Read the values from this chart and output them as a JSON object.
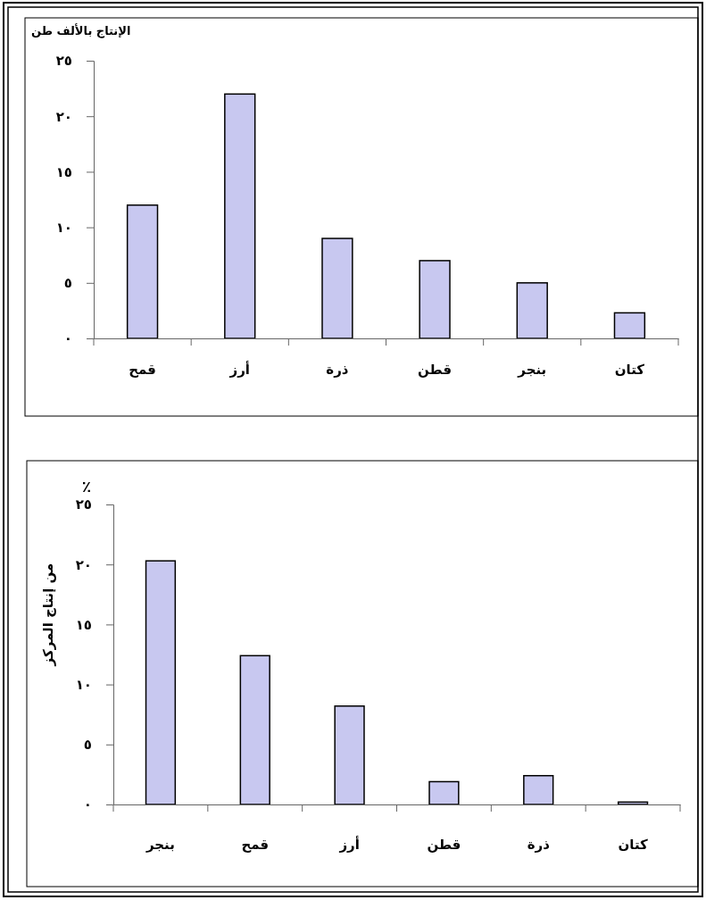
{
  "chart_data": [
    {
      "type": "bar",
      "ylabel": "الإنتاج بالألف طن",
      "categories": [
        "قمح",
        "أرز",
        "ذرة",
        "قطن",
        "بنجر",
        "كتان"
      ],
      "values": [
        12.0,
        22.0,
        9.0,
        7.0,
        5.0,
        2.3
      ],
      "color": "#c8c8f0",
      "ylim": [
        0,
        25
      ],
      "yticks": [
        {
          "value": 0,
          "label": "٠"
        },
        {
          "value": 5,
          "label": "٥"
        },
        {
          "value": 10,
          "label": "١٠"
        },
        {
          "value": 15,
          "label": "١٥"
        },
        {
          "value": 20,
          "label": "٢٠"
        },
        {
          "value": 25,
          "label": "٢٥"
        }
      ],
      "grid": false
    },
    {
      "type": "bar",
      "ylabel": "من إنتاج المركز",
      "annotations": [
        "٪"
      ],
      "categories": [
        "بنجر",
        "قمح",
        "أرز",
        "قطن",
        "ذرة",
        "كتان"
      ],
      "values": [
        20.3,
        12.4,
        8.2,
        1.9,
        2.4,
        0.2
      ],
      "color": "#c8c8f0",
      "ylim": [
        0,
        25
      ],
      "yticks": [
        {
          "value": 0,
          "label": "٠"
        },
        {
          "value": 5,
          "label": "٥"
        },
        {
          "value": 10,
          "label": "١٠"
        },
        {
          "value": 15,
          "label": "١٥"
        },
        {
          "value": 20,
          "label": "٢٠"
        },
        {
          "value": 25,
          "label": "٢٥"
        }
      ],
      "grid": false
    }
  ]
}
